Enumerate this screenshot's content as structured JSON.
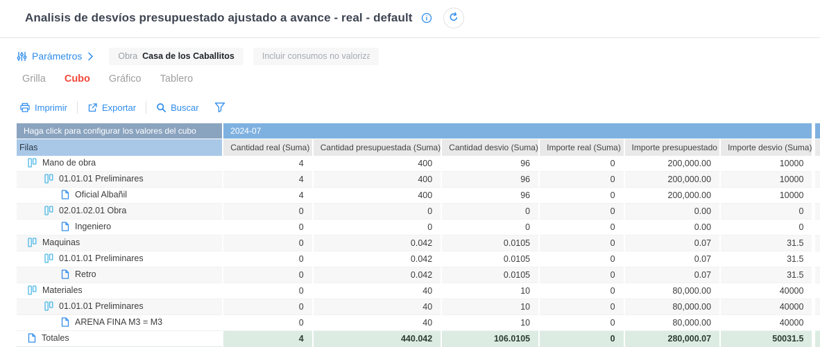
{
  "header": {
    "title": "Analisis de desvíos presupuestado ajustado a avance - real - default"
  },
  "params": {
    "label": "Parámetros",
    "obra_label": "Obra",
    "obra_value": "Casa de los Caballitos",
    "consumos_placeholder": "Incluir consumos no valorizados"
  },
  "tabs": [
    {
      "label": "Grilla",
      "active": false
    },
    {
      "label": "Cubo",
      "active": true
    },
    {
      "label": "Gráfico",
      "active": false
    },
    {
      "label": "Tablero",
      "active": false
    }
  ],
  "toolbar": {
    "items": [
      {
        "label": "Imprimir",
        "icon": "printer"
      },
      {
        "label": "Exportar",
        "icon": "export"
      },
      {
        "label": "Buscar",
        "icon": "search"
      },
      {
        "label": "",
        "icon": "filter"
      }
    ]
  },
  "cube": {
    "config_hint": "Haga click para configurar los valores del cubo",
    "rows_label": "Filas",
    "period": "2024-07",
    "columns": [
      "Cantidad real (Suma)",
      "Cantidad presupuestada (Suma)",
      "Cantidad desvio (Suma)",
      "Importe real (Suma)",
      "Importe presupuestado",
      "Importe desvio (Suma)"
    ],
    "rows": [
      {
        "label": "Mano de obra",
        "level": 0,
        "icon": "dimension",
        "total": false,
        "values": [
          "4",
          "400",
          "96",
          "0",
          "200,000.00",
          "10000"
        ]
      },
      {
        "label": "01.01.01 Preliminares",
        "level": 1,
        "icon": "dimension",
        "total": false,
        "values": [
          "4",
          "400",
          "96",
          "0",
          "200,000.00",
          "10000"
        ]
      },
      {
        "label": "Oficial Albañil",
        "level": 2,
        "icon": "document",
        "total": false,
        "values": [
          "4",
          "400",
          "96",
          "0",
          "200,000.00",
          "10000"
        ]
      },
      {
        "label": "02.01.02.01 Obra",
        "level": 1,
        "icon": "dimension",
        "total": false,
        "values": [
          "0",
          "0",
          "0",
          "0",
          "0.00",
          "0"
        ]
      },
      {
        "label": "Ingeniero",
        "level": 2,
        "icon": "document",
        "total": false,
        "values": [
          "0",
          "0",
          "0",
          "0",
          "0.00",
          "0"
        ]
      },
      {
        "label": "Maquinas",
        "level": 0,
        "icon": "dimension",
        "total": false,
        "values": [
          "0",
          "0.042",
          "0.0105",
          "0",
          "0.07",
          "31.5"
        ]
      },
      {
        "label": "01.01.01 Preliminares",
        "level": 1,
        "icon": "dimension",
        "total": false,
        "values": [
          "0",
          "0.042",
          "0.0105",
          "0",
          "0.07",
          "31.5"
        ]
      },
      {
        "label": "Retro",
        "level": 2,
        "icon": "document",
        "total": false,
        "values": [
          "0",
          "0.042",
          "0.0105",
          "0",
          "0.07",
          "31.5"
        ]
      },
      {
        "label": "Materiales",
        "level": 0,
        "icon": "dimension",
        "total": false,
        "values": [
          "0",
          "40",
          "10",
          "0",
          "80,000.00",
          "40000"
        ]
      },
      {
        "label": "01.01.01 Preliminares",
        "level": 1,
        "icon": "dimension",
        "total": false,
        "values": [
          "0",
          "40",
          "10",
          "0",
          "80,000.00",
          "40000"
        ]
      },
      {
        "label": "ARENA FINA M3 = M3",
        "level": 2,
        "icon": "document",
        "total": false,
        "values": [
          "0",
          "40",
          "10",
          "0",
          "80,000.00",
          "40000"
        ]
      },
      {
        "label": "Totales",
        "level": 0,
        "icon": "document",
        "total": true,
        "values": [
          "4",
          "440.042",
          "106.0105",
          "0",
          "280,000.07",
          "50031.5"
        ]
      }
    ]
  },
  "colors": {
    "accent_blue": "#2f8ceb",
    "active_tab_red": "#f4473c",
    "period_band_blue": "#7fb1e0",
    "config_cell_blue": "#8aa3bf",
    "filas_cell_blue": "#a9c8e8",
    "column_header_gray": "#e9e9e9",
    "zebra_gray": "#f7f7f7",
    "totals_green": "#dcece3",
    "dimension_icon_cyan": "#49b6e8"
  }
}
